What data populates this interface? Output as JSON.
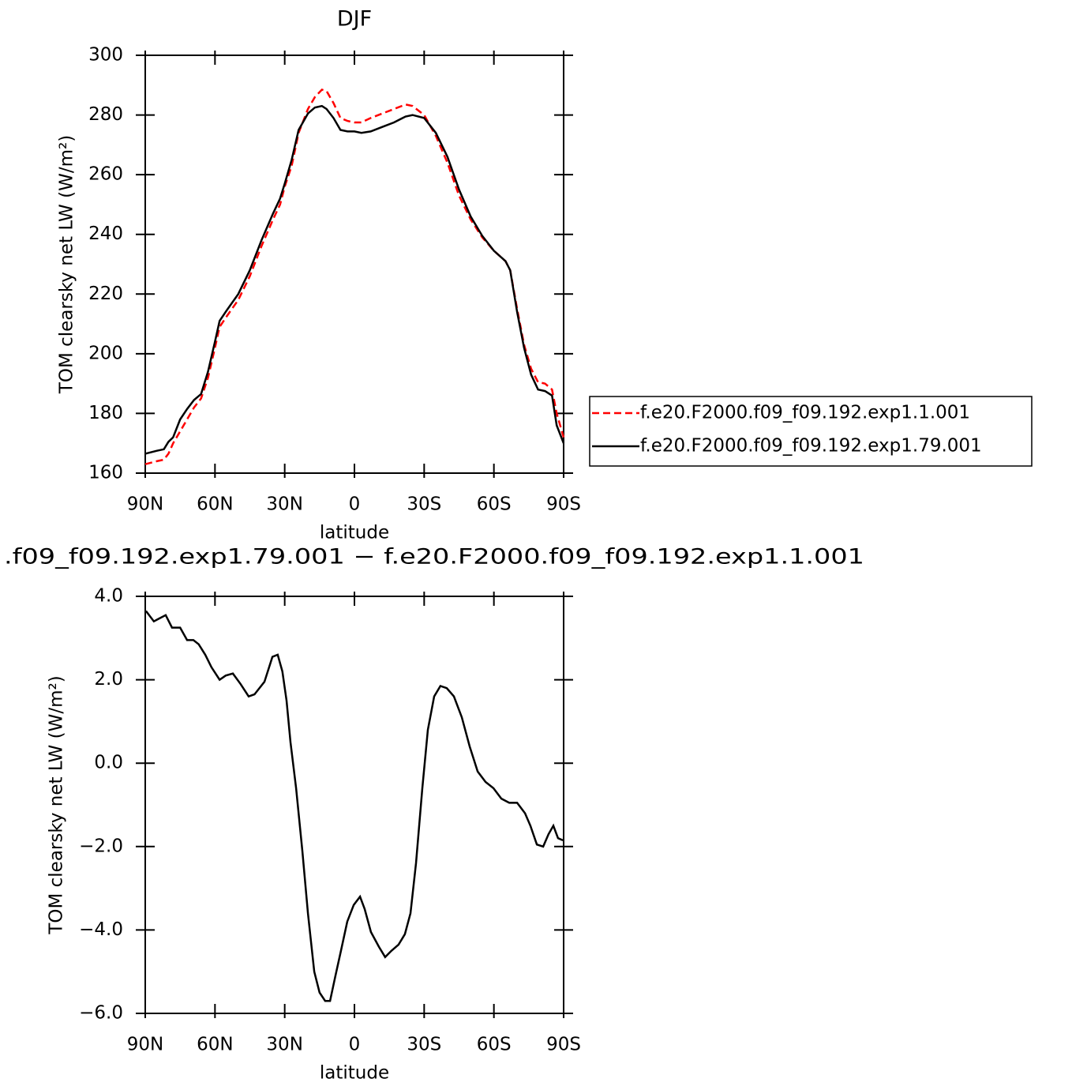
{
  "chart_data": [
    {
      "type": "line",
      "title": "DJF",
      "xlabel": "latitude",
      "ylabel": "TOM clearsky net LW (W/m²)",
      "x": [
        90,
        85,
        82,
        80,
        78,
        75,
        72,
        69,
        66,
        63,
        60,
        58,
        55,
        50,
        45,
        40,
        35,
        32,
        30,
        27,
        24,
        20,
        17,
        14,
        12,
        9,
        6,
        3,
        0,
        -3,
        -7,
        -12,
        -17,
        -22,
        -25,
        -30,
        -35,
        -40,
        -45,
        -50,
        -55,
        -60,
        -65,
        -67,
        -70,
        -73,
        -76,
        -79,
        -82,
        -85,
        -87,
        -90
      ],
      "series": [
        {
          "name": "f.e20.F2000.f09_f09.192.exp1.1.001",
          "color": "#ff0000",
          "line_style": "dashed",
          "values": [
            163,
            164,
            164.5,
            166.5,
            170,
            174,
            178,
            182,
            185,
            192,
            202,
            209,
            212.5,
            218,
            226,
            236,
            245,
            250,
            256,
            263,
            274,
            282,
            286,
            288.5,
            288,
            284,
            279,
            278,
            277.5,
            277.5,
            279,
            280.5,
            282,
            283.5,
            283,
            280,
            273,
            264,
            253,
            245,
            239,
            234.5,
            231,
            228,
            215,
            203,
            195,
            190.5,
            190,
            188,
            180,
            172
          ]
        },
        {
          "name": "f.e20.F2000.f09_f09.192.exp1.79.001",
          "color": "#000000",
          "line_style": "solid",
          "values": [
            166.5,
            167.5,
            168,
            170.5,
            172,
            178,
            181.5,
            184.5,
            186.5,
            194,
            204,
            211,
            214.5,
            220,
            228,
            238,
            247,
            252,
            257,
            265,
            275,
            280.5,
            282.5,
            283,
            282,
            279,
            275,
            274.5,
            274.5,
            274,
            274.5,
            276,
            277.5,
            279.5,
            280,
            279,
            274,
            266,
            255,
            246,
            239.5,
            234.5,
            231,
            228,
            214,
            202,
            193,
            188,
            187.5,
            186,
            176,
            170
          ]
        }
      ],
      "xlim": [
        90,
        -90
      ],
      "xticks": [
        {
          "value": 90,
          "label": "90N"
        },
        {
          "value": 60,
          "label": "60N"
        },
        {
          "value": 30,
          "label": "30N"
        },
        0,
        {
          "value": -30,
          "label": "30S"
        },
        {
          "value": -60,
          "label": "60S"
        },
        {
          "value": -90,
          "label": "90S"
        }
      ],
      "ylim": [
        160,
        300
      ],
      "yticks": [
        160,
        180,
        200,
        220,
        240,
        260,
        280,
        300
      ],
      "legend": "right"
    },
    {
      "type": "line",
      "title": ".f09_f09.192.exp1.79.001 − f.e20.F2000.f09_f09.192.exp1.1.001",
      "xlabel": "latitude",
      "ylabel": "TOM clearsky net LW (W/m²)",
      "x": [
        89.7,
        86.3,
        84.6,
        81.2,
        78.5,
        75,
        72,
        69.3,
        67,
        64.2,
        61.5,
        58,
        55.4,
        52.3,
        49,
        45.5,
        43,
        38.7,
        35.3,
        33,
        31,
        29.2,
        27.5,
        25.1,
        22.4,
        20,
        17.3,
        15,
        12.6,
        10.5,
        8.2,
        5.8,
        3.1,
        0.3,
        -2.4,
        -4.4,
        -7.1,
        -10.5,
        -13.2,
        -15.9,
        -19,
        -21.7,
        -24.1,
        -26.5,
        -29.2,
        -31.6,
        -34.3,
        -37,
        -39.7,
        -42.8,
        -46.2,
        -49.6,
        -53,
        -56.4,
        -59.8,
        -63.2,
        -66.6,
        -70,
        -73.4,
        -75.7,
        -78.5,
        -81.2,
        -83.5,
        -85.6,
        -87.6,
        -89.7
      ],
      "series": [
        {
          "color": "#000000",
          "line_style": "solid",
          "values": [
            3.65,
            3.4,
            3.45,
            3.55,
            3.25,
            3.25,
            2.95,
            2.95,
            2.85,
            2.6,
            2.3,
            2.0,
            2.1,
            2.15,
            1.9,
            1.6,
            1.65,
            1.95,
            2.55,
            2.6,
            2.2,
            1.5,
            0.5,
            -0.6,
            -2.1,
            -3.6,
            -5.0,
            -5.5,
            -5.7,
            -5.7,
            -5.1,
            -4.5,
            -3.8,
            -3.4,
            -3.2,
            -3.5,
            -4.05,
            -4.4,
            -4.65,
            -4.5,
            -4.35,
            -4.1,
            -3.6,
            -2.4,
            -0.6,
            0.8,
            1.6,
            1.85,
            1.8,
            1.6,
            1.1,
            0.4,
            -0.2,
            -0.45,
            -0.6,
            -0.85,
            -0.95,
            -0.95,
            -1.2,
            -1.5,
            -1.95,
            -2.0,
            -1.7,
            -1.5,
            -1.8,
            -1.85
          ]
        }
      ],
      "xlim": [
        90,
        -90
      ],
      "xticks": [
        {
          "value": 90,
          "label": "90N"
        },
        {
          "value": 60,
          "label": "60N"
        },
        {
          "value": 30,
          "label": "30N"
        },
        0,
        {
          "value": -30,
          "label": "30S"
        },
        {
          "value": -60,
          "label": "60S"
        },
        {
          "value": -90,
          "label": "90S"
        }
      ],
      "ylim": [
        -6,
        4
      ],
      "yticks": [
        {
          "value": -6,
          "label": "−6.0"
        },
        {
          "value": -4,
          "label": "−4.0"
        },
        {
          "value": -2,
          "label": "−2.0"
        },
        {
          "value": 0,
          "label": "0.0"
        },
        {
          "value": 2,
          "label": "2.0"
        },
        {
          "value": 4,
          "label": "4.0"
        }
      ]
    }
  ]
}
